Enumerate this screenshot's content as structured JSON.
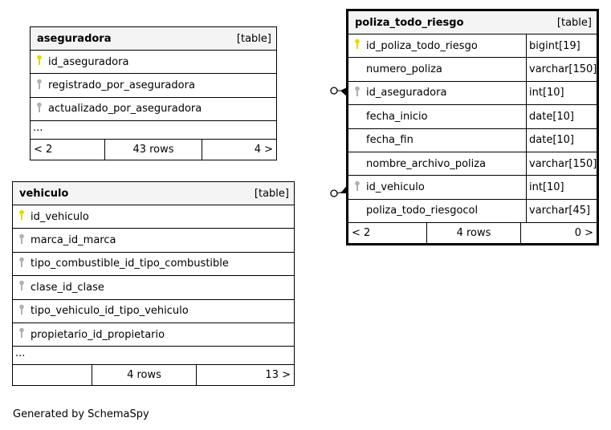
{
  "tables": [
    {
      "name": "aseguradora",
      "kind": "[table]",
      "columns": [
        {
          "name": "id_aseguradora",
          "key": "primary"
        },
        {
          "name": "registrado_por_aseguradora",
          "key": "foreign"
        },
        {
          "name": "actualizado_por_aseguradora",
          "key": "foreign"
        }
      ],
      "more": "...",
      "footer": {
        "parents": "< 2",
        "rows": "43 rows",
        "children": "4 >"
      }
    },
    {
      "name": "vehiculo",
      "kind": "[table]",
      "columns": [
        {
          "name": "id_vehiculo",
          "key": "primary"
        },
        {
          "name": "marca_id_marca",
          "key": "foreign"
        },
        {
          "name": "tipo_combustible_id_tipo_combustible",
          "key": "foreign"
        },
        {
          "name": "clase_id_clase",
          "key": "foreign"
        },
        {
          "name": "tipo_vehiculo_id_tipo_vehiculo",
          "key": "foreign"
        },
        {
          "name": "propietario_id_propietario",
          "key": "foreign"
        }
      ],
      "more": "...",
      "footer": {
        "parents": "",
        "rows": "4 rows",
        "children": "13 >"
      }
    },
    {
      "name": "poliza_todo_riesgo",
      "kind": "[table]",
      "columns": [
        {
          "name": "id_poliza_todo_riesgo",
          "key": "primary",
          "type": "bigint[19]"
        },
        {
          "name": "numero_poliza",
          "key": "",
          "type": "varchar[150]"
        },
        {
          "name": "id_aseguradora",
          "key": "foreign",
          "type": "int[10]"
        },
        {
          "name": "fecha_inicio",
          "key": "",
          "type": "date[10]"
        },
        {
          "name": "fecha_fin",
          "key": "",
          "type": "date[10]"
        },
        {
          "name": "nombre_archivo_poliza",
          "key": "",
          "type": "varchar[150]"
        },
        {
          "name": "id_vehiculo",
          "key": "foreign",
          "type": "int[10]"
        },
        {
          "name": "poliza_todo_riesgocol",
          "key": "",
          "type": "varchar[45]"
        }
      ],
      "footer": {
        "parents": "< 2",
        "rows": "4 rows",
        "children": "0 >"
      }
    }
  ],
  "colors": {
    "primary_key": "#e6d800",
    "foreign_key": "#b0b0b0"
  },
  "generated_by": "Generated by SchemaSpy"
}
